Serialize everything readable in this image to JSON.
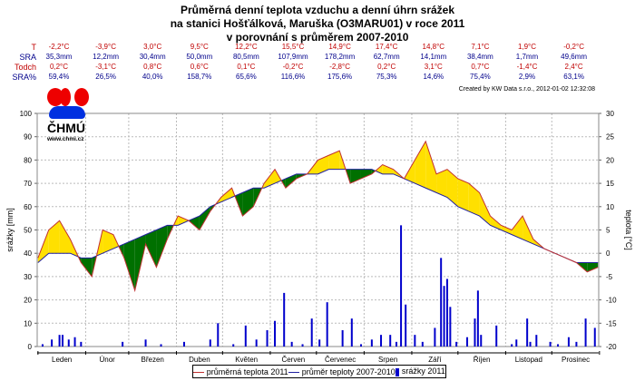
{
  "title": [
    "Průměrná denní teplota vzduchu a denní úhrn srážek",
    "na stanici Hošťálková, Maruška (O3MARU01) v roce 2011",
    "v porovnání s průměrem 2007-2010"
  ],
  "stats": {
    "T": {
      "label": "T",
      "color": "#c00000",
      "values": [
        "-2,2°C",
        "-3,9°C",
        "3,0°C",
        "9,5°C",
        "12,2°C",
        "15,5°C",
        "14,9°C",
        "17,4°C",
        "14,8°C",
        "7,1°C",
        "1,9°C",
        "-0,2°C"
      ]
    },
    "SRA": {
      "label": "SRA",
      "color": "#00008b",
      "values": [
        "35,3mm",
        "12,2mm",
        "30,4mm",
        "50,0mm",
        "80,5mm",
        "107,9mm",
        "178,2mm",
        "62,7mm",
        "14,1mm",
        "38,4mm",
        "1,7mm",
        "49,6mm"
      ]
    },
    "Todch": {
      "label": "Todch",
      "color": "#c00000",
      "values": [
        "0,2°C",
        "-3,1°C",
        "0,8°C",
        "0,6°C",
        "0,1°C",
        "-0,2°C",
        "-2,8°C",
        "0,2°C",
        "3,1°C",
        "0,7°C",
        "-1,4°C",
        "2,4°C"
      ]
    },
    "SRAp": {
      "label": "SRA%",
      "color": "#00008b",
      "values": [
        "59,4%",
        "26,5%",
        "40,0%",
        "158,7%",
        "65,6%",
        "116,6%",
        "175,6%",
        "75,3%",
        "14,6%",
        "75,4%",
        "2,9%",
        "63,1%"
      ]
    }
  },
  "created": "Created by KW Data s.r.o., 2012-01-02 12:32:08",
  "logo": {
    "text": "ČHMÚ",
    "url": "www.chmi.cz"
  },
  "chart_data": {
    "type": "line",
    "ylabel_left": "srážky [mm]",
    "ylabel_right": "teplota [°C]",
    "ylim_left": [
      0,
      100
    ],
    "ylim_right": [
      -20,
      30
    ],
    "yticks_left": [
      "0",
      "10",
      "20",
      "30",
      "40",
      "50",
      "60",
      "70",
      "80",
      "90",
      "100"
    ],
    "yticks_right": [
      "-20",
      "-15",
      "-10",
      "-5",
      "0",
      "5",
      "10",
      "15",
      "20",
      "25",
      "30"
    ],
    "months": [
      "Leden",
      "Únor",
      "Březen",
      "Duben",
      "Květen",
      "Červen",
      "Červenec",
      "Srpen",
      "Září",
      "Říjen",
      "Listopad",
      "Prosinec"
    ],
    "grid": true,
    "legend_placement": "bottom",
    "colors": {
      "t2011": "#c03030",
      "tavg": "#2020a0",
      "precip": "#0000cc",
      "warmer": "#ffe000",
      "colder": "#007000"
    },
    "series": [
      {
        "name": "průměrná teplota 2011",
        "step_days": 7,
        "values": [
          -1,
          5,
          7,
          3,
          -2,
          -5,
          5,
          4,
          -1,
          -8,
          2,
          -3,
          3,
          8,
          7,
          5,
          9,
          12,
          14,
          8,
          10,
          15,
          18,
          14,
          16,
          17,
          20,
          21,
          22,
          15,
          16,
          17,
          19,
          18,
          16,
          20,
          24,
          17,
          18,
          16,
          15,
          13,
          8,
          6,
          5,
          8,
          3,
          1,
          0,
          -1,
          -2,
          -4,
          -3
        ]
      },
      {
        "name": "průměr teploty 2007-2010",
        "step_days": 7,
        "values": [
          -2,
          0,
          0,
          0,
          -1,
          -1,
          0,
          1,
          2,
          3,
          4,
          5,
          6,
          6,
          7,
          8,
          10,
          11,
          12,
          13,
          14,
          14,
          15,
          16,
          17,
          17,
          17,
          18,
          18,
          18,
          18,
          18,
          17,
          17,
          16,
          15,
          14,
          13,
          12,
          10,
          9,
          8,
          6,
          5,
          4,
          3,
          2,
          1,
          0,
          -1,
          -2,
          -2,
          -2
        ]
      },
      {
        "name": "srážky 2011",
        "type": "bar",
        "points": [
          [
            3,
            1
          ],
          [
            9,
            3
          ],
          [
            14,
            5
          ],
          [
            16,
            5
          ],
          [
            20,
            3
          ],
          [
            24,
            4
          ],
          [
            28,
            2
          ],
          [
            55,
            2
          ],
          [
            70,
            3
          ],
          [
            80,
            1
          ],
          [
            95,
            2
          ],
          [
            112,
            3
          ],
          [
            117,
            10
          ],
          [
            127,
            1
          ],
          [
            135,
            9
          ],
          [
            142,
            3
          ],
          [
            149,
            7
          ],
          [
            154,
            11
          ],
          [
            160,
            23
          ],
          [
            165,
            2
          ],
          [
            172,
            1
          ],
          [
            178,
            12
          ],
          [
            183,
            3
          ],
          [
            188,
            19
          ],
          [
            198,
            7
          ],
          [
            204,
            12
          ],
          [
            210,
            1
          ],
          [
            217,
            3
          ],
          [
            223,
            5
          ],
          [
            229,
            5
          ],
          [
            233,
            2
          ],
          [
            236,
            52
          ],
          [
            239,
            18
          ],
          [
            245,
            5
          ],
          [
            250,
            2
          ],
          [
            258,
            8
          ],
          [
            262,
            38
          ],
          [
            264,
            26
          ],
          [
            266,
            29
          ],
          [
            268,
            17
          ],
          [
            272,
            2
          ],
          [
            279,
            4
          ],
          [
            284,
            12
          ],
          [
            286,
            24
          ],
          [
            288,
            5
          ],
          [
            298,
            9
          ],
          [
            308,
            1
          ],
          [
            311,
            3
          ],
          [
            318,
            12
          ],
          [
            320,
            2
          ],
          [
            324,
            5
          ],
          [
            333,
            2
          ],
          [
            338,
            1
          ],
          [
            345,
            4
          ],
          [
            350,
            2
          ],
          [
            356,
            12
          ],
          [
            362,
            8
          ]
        ]
      }
    ]
  }
}
